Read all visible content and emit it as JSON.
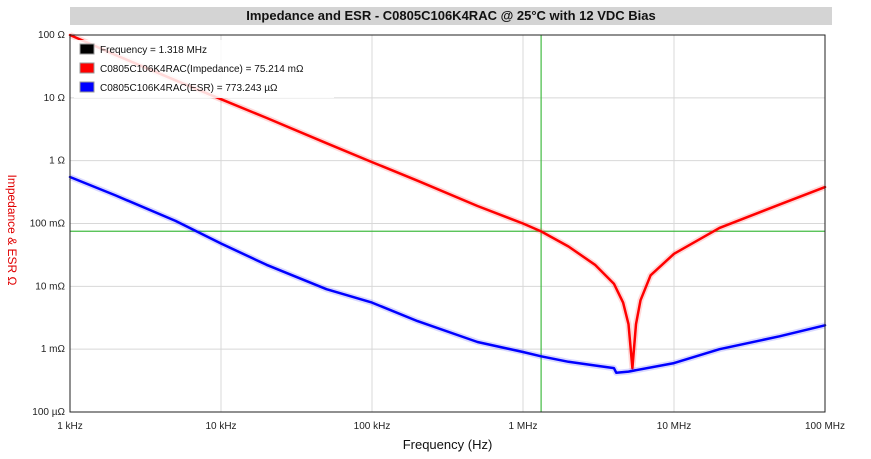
{
  "chart_data": {
    "type": "line",
    "title": "Impedance and ESR - C0805C106K4RAC @ 25°C with 12 VDC Bias",
    "xlabel": "Frequency (Hz)",
    "ylabel": "Impedance & ESR Ω",
    "x_scale": "log",
    "y_scale": "log",
    "xlim": [
      1000,
      100000000
    ],
    "ylim": [
      0.0001,
      100
    ],
    "grid": true,
    "legend_position": "top-left",
    "x_ticks": [
      {
        "value": 1000,
        "label": "1 kHz"
      },
      {
        "value": 10000,
        "label": "10 kHz"
      },
      {
        "value": 100000,
        "label": "100 kHz"
      },
      {
        "value": 1000000,
        "label": "1 MHz"
      },
      {
        "value": 10000000,
        "label": "10 MHz"
      },
      {
        "value": 100000000,
        "label": "100 MHz"
      }
    ],
    "y_ticks": [
      {
        "value": 100,
        "label": "100 Ω"
      },
      {
        "value": 10,
        "label": "10 Ω"
      },
      {
        "value": 1,
        "label": "1 Ω"
      },
      {
        "value": 0.1,
        "label": "100 mΩ"
      },
      {
        "value": 0.01,
        "label": "10 mΩ"
      },
      {
        "value": 0.001,
        "label": "1 mΩ"
      },
      {
        "value": 0.0001,
        "label": "100 µΩ"
      }
    ],
    "cursor": {
      "x": 1318000,
      "y": 0.075214
    },
    "legend": [
      {
        "label": "Frequency = 1.318 MHz",
        "color": "#000000"
      },
      {
        "label": "C0805C106K4RAC(Impedance) = 75.214 mΩ",
        "color": "#ff0000"
      },
      {
        "label": "C0805C106K4RAC(ESR) = 773.243 µΩ",
        "color": "#0000ff"
      }
    ],
    "series": [
      {
        "color": "#ff0000",
        "x": [
          1000,
          2000,
          5000,
          10000,
          20000,
          50000,
          100000,
          200000,
          500000,
          1000000,
          1318000,
          2000000,
          3000000,
          4000000,
          4600000,
          5000000,
          5300000,
          5600000,
          6000000,
          7000000,
          10000000,
          20000000,
          50000000,
          100000000
        ],
        "y": [
          100,
          48,
          19,
          9.5,
          4.8,
          1.9,
          0.95,
          0.48,
          0.19,
          0.1,
          0.075,
          0.043,
          0.022,
          0.011,
          0.0055,
          0.0025,
          0.0005,
          0.0025,
          0.006,
          0.015,
          0.033,
          0.085,
          0.2,
          0.38
        ]
      },
      {
        "color": "#0000ff",
        "x": [
          1000,
          2000,
          5000,
          10000,
          20000,
          50000,
          100000,
          200000,
          500000,
          1000000,
          1318000,
          2000000,
          3000000,
          4000000,
          4150000,
          5000000,
          10000000,
          20000000,
          50000000,
          100000000
        ],
        "y": [
          0.55,
          0.28,
          0.11,
          0.048,
          0.022,
          0.009,
          0.0055,
          0.0028,
          0.0013,
          0.0009,
          0.00077,
          0.00063,
          0.00055,
          0.0005,
          0.00042,
          0.00044,
          0.0006,
          0.001,
          0.0016,
          0.0024
        ]
      }
    ]
  }
}
